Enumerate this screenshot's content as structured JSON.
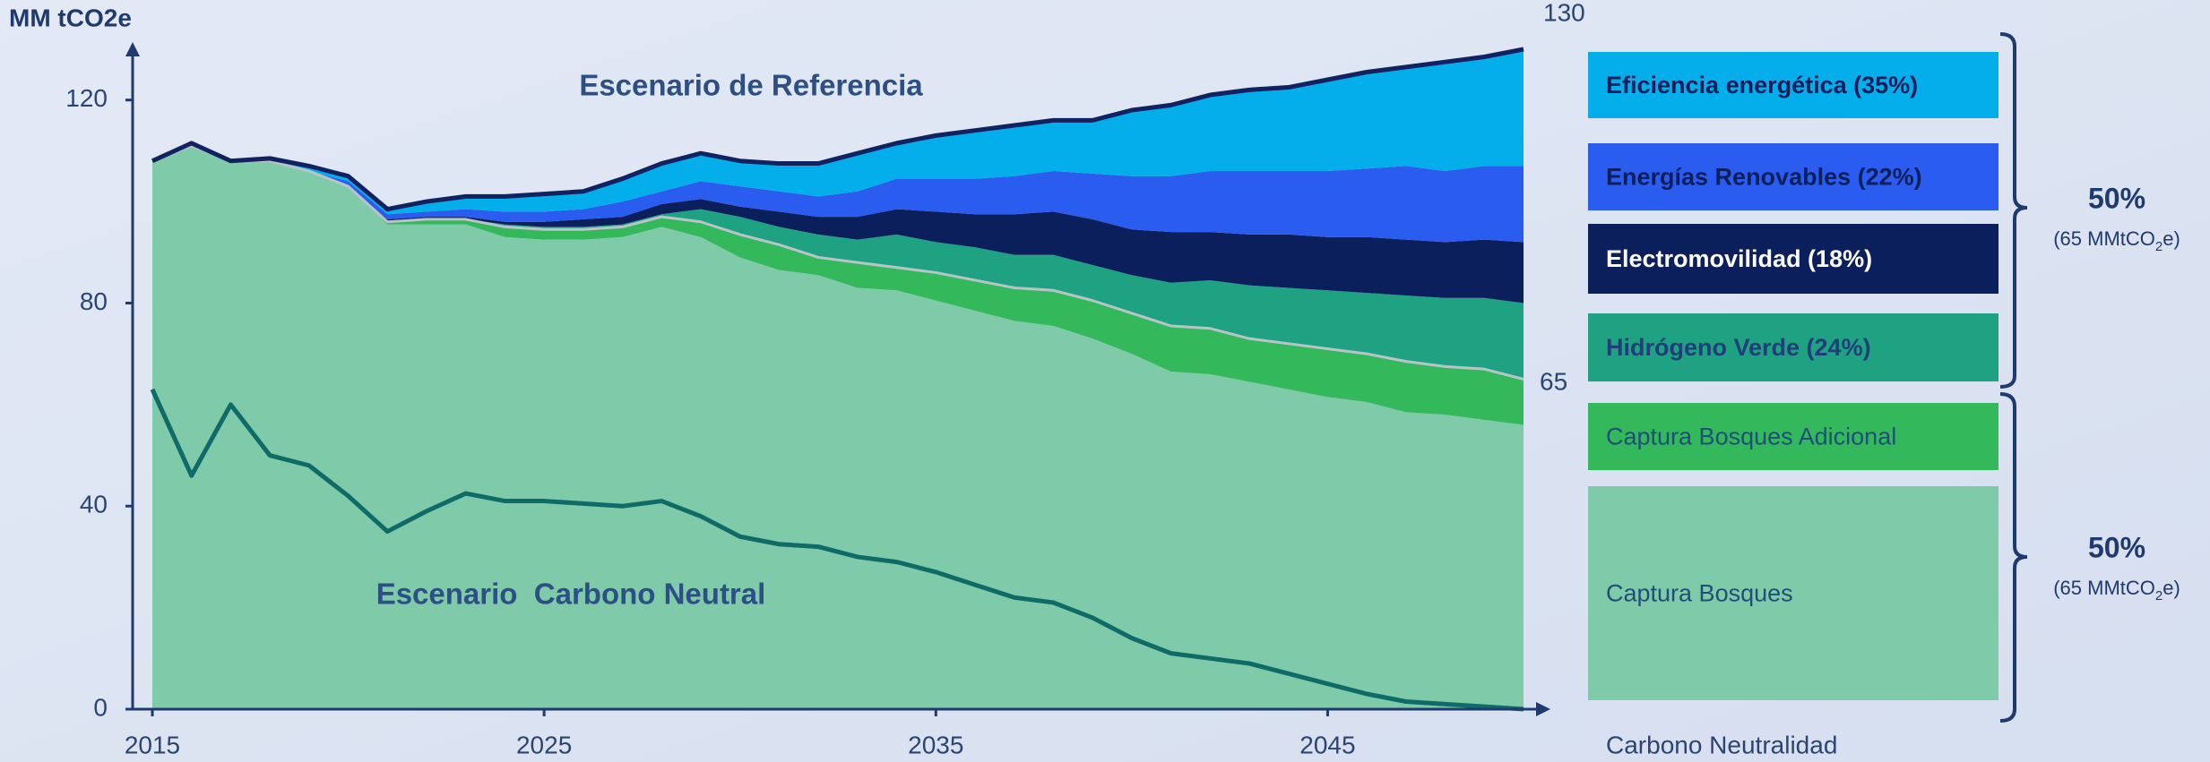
{
  "chart_data": {
    "type": "stacked_area",
    "y_label": "MM tCO2e",
    "x": [
      2015,
      2016,
      2017,
      2018,
      2019,
      2020,
      2021,
      2022,
      2023,
      2024,
      2025,
      2026,
      2027,
      2028,
      2029,
      2030,
      2031,
      2032,
      2033,
      2034,
      2035,
      2036,
      2037,
      2038,
      2039,
      2040,
      2041,
      2042,
      2043,
      2044,
      2045,
      2046,
      2047,
      2048,
      2049,
      2050
    ],
    "xlim": [
      2015,
      2050
    ],
    "xticks": [
      2015,
      2025,
      2035,
      2045
    ],
    "ylim": [
      0,
      130
    ],
    "yticks": [
      0,
      40,
      80,
      120
    ],
    "series": [
      {
        "name": "Captura Bosques",
        "color": "#7fcaa9",
        "text_color": "#1f4e79",
        "bold": false,
        "values": [
          108,
          111,
          108,
          108,
          106,
          103,
          95.5,
          95.5,
          95.5,
          93,
          92.5,
          92.5,
          93,
          95,
          93,
          89,
          86.5,
          85.5,
          83,
          82.5,
          80.5,
          78.5,
          76.5,
          75.5,
          73,
          70,
          66.5,
          66,
          64.5,
          63,
          61.5,
          60.5,
          58.5,
          58,
          57,
          56
        ]
      },
      {
        "name": "Captura Bosques Adicional",
        "color": "#34b85c",
        "text_color": "#1f4e79",
        "bold": false,
        "values": [
          0,
          0,
          0,
          0,
          0,
          0,
          0.5,
          1,
          1,
          2,
          2,
          2,
          2,
          2,
          3,
          4.5,
          5,
          3.5,
          5,
          4.5,
          5.5,
          6,
          6.5,
          7,
          7.5,
          8,
          9,
          9,
          8.5,
          9,
          9.5,
          9.5,
          10,
          9.5,
          10,
          9
        ]
      },
      {
        "name": "Hidrógeno Verde (24%)",
        "color": "#1fa282",
        "text_color": "#1f3f7a",
        "bold": true,
        "values": [
          0,
          0,
          0,
          0,
          0,
          0,
          0,
          0,
          0,
          0.5,
          0.5,
          0.5,
          0.5,
          0.5,
          2.5,
          3.5,
          3.5,
          4.5,
          4.5,
          6.5,
          6,
          6.5,
          6.5,
          7,
          7,
          7.5,
          8.5,
          9.5,
          10.5,
          11,
          11.5,
          12,
          13,
          13.5,
          14,
          15
        ]
      },
      {
        "name": "Electromovilidad (18%)",
        "color": "#0b1f5c",
        "text_color": "#ffffff",
        "bold": true,
        "values": [
          0,
          0,
          0,
          0,
          0,
          0,
          0.5,
          0.5,
          0.5,
          0.5,
          1,
          1.5,
          1.5,
          2,
          2,
          2,
          3,
          3.5,
          4.5,
          5,
          6,
          6.5,
          8,
          8.5,
          9,
          9,
          10,
          9.5,
          10,
          10.5,
          10.5,
          11,
          11,
          11,
          11.5,
          12
        ]
      },
      {
        "name": "Energías Renovables (22%)",
        "color": "#2b5cf0",
        "text_color": "#0b1f5c",
        "bold": true,
        "values": [
          0,
          0,
          0,
          0,
          0,
          1,
          1,
          1,
          1.5,
          2,
          2,
          2,
          3,
          2.5,
          3.5,
          4,
          4,
          4,
          5,
          6,
          6.5,
          7,
          7.5,
          8,
          9,
          10.5,
          11,
          12,
          12.5,
          12.5,
          13,
          13.5,
          14.5,
          14,
          14.5,
          15
        ]
      },
      {
        "name": "Eficiencia energética (35%)",
        "color": "#03aeea",
        "text_color": "#0b1f5c",
        "bold": true,
        "values": [
          0,
          0.5,
          0,
          0.5,
          1,
          1,
          1,
          2,
          2.5,
          3,
          3.5,
          3.5,
          4.5,
          5.5,
          5.5,
          5,
          5.5,
          6.5,
          7.5,
          7,
          8.5,
          9.5,
          10,
          10,
          10.5,
          13,
          14,
          15,
          16,
          16.5,
          18,
          19,
          19.5,
          21.5,
          21.5,
          23
        ]
      }
    ],
    "neutral_line": {
      "color": "#0f6b68",
      "values": [
        63,
        46,
        60,
        50,
        48,
        42,
        35,
        39,
        42.5,
        41,
        41,
        40.5,
        40,
        41,
        38,
        34,
        32.5,
        32,
        30,
        29,
        27,
        24.5,
        22,
        21,
        18,
        14,
        11,
        10,
        9,
        7,
        5,
        3,
        1.5,
        1,
        0.5,
        0
      ]
    },
    "annotations": {
      "reference": "Escenario de Referencia",
      "neutral": "Escenario  Carbono Neutral",
      "reference_total": 130,
      "neutral_total": 65,
      "footer": "Carbono Neutralidad"
    },
    "brackets": [
      {
        "share": "50%",
        "note_prefix": "(65 MMtCO",
        "note_sub": "2",
        "note_suffix": "e)"
      },
      {
        "share": "50%",
        "note_prefix": "(65 MMtCO",
        "note_sub": "2",
        "note_suffix": "e)"
      }
    ]
  }
}
